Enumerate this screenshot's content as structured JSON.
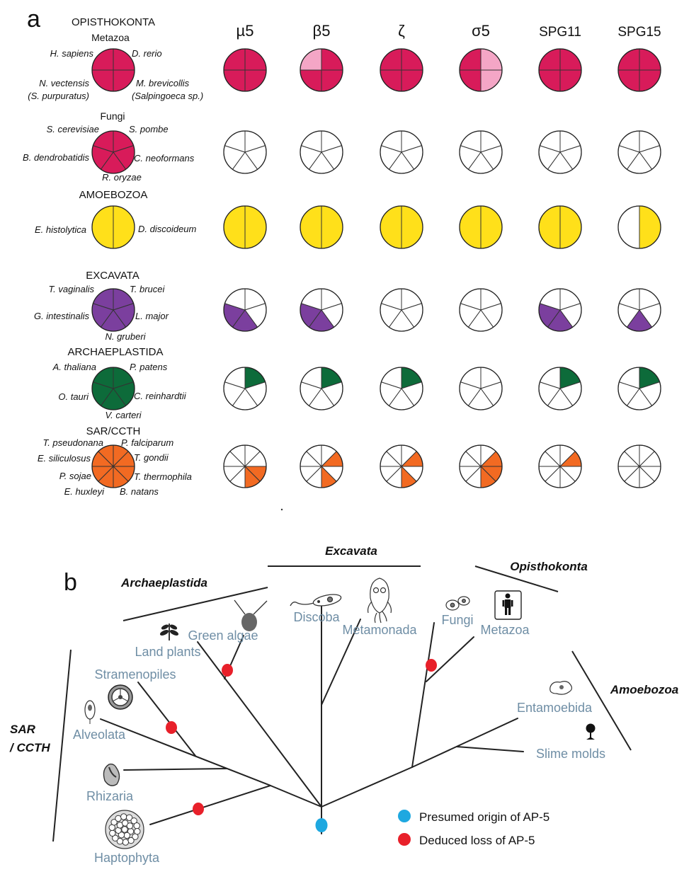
{
  "panel_a": {
    "letter": "a",
    "columns": [
      "µ5",
      "β5",
      "ζ",
      "σ5",
      "SPG11",
      "SPG15"
    ],
    "groups": [
      {
        "title": "OPISTHOKONTA",
        "subtitle": "Metazoa",
        "color": "#d81b5a",
        "light_color": "#f4a6c6",
        "sectors": 4,
        "species": [
          "H. sapiens",
          "D. rerio",
          "N. vectensis",
          "(S. purpuratus)",
          "M. brevicollis",
          "(Salpingoeca sp.)"
        ],
        "presence": [
          [
            1,
            1,
            1,
            1
          ],
          [
            1,
            1,
            1,
            0.5
          ],
          [
            1,
            1,
            1,
            1
          ],
          [
            0.5,
            0.5,
            1,
            1
          ],
          [
            1,
            1,
            1,
            1
          ],
          [
            1,
            1,
            1,
            1
          ]
        ]
      },
      {
        "title": "",
        "subtitle": "Fungi",
        "color": "#d81b5a",
        "sectors": 5,
        "species": [
          "S. cerevisiae",
          "S. pombe",
          "B. dendrobatidis",
          "C. neoformans",
          "R. oryzae"
        ],
        "presence": [
          [
            0,
            0,
            0,
            0,
            0
          ],
          [
            0,
            0,
            0,
            0,
            0
          ],
          [
            0,
            0,
            0,
            0,
            0
          ],
          [
            0,
            0,
            0,
            0,
            0
          ],
          [
            0,
            0,
            0,
            0,
            0
          ],
          [
            0,
            0,
            0,
            0,
            0
          ]
        ]
      },
      {
        "title": "AMOEBOZOA",
        "subtitle": "",
        "color": "#ffe01a",
        "sectors": 2,
        "species": [
          "E. histolytica",
          "D. discoideum"
        ],
        "presence": [
          [
            1,
            1
          ],
          [
            1,
            1
          ],
          [
            1,
            1
          ],
          [
            1,
            1
          ],
          [
            1,
            1
          ],
          [
            1,
            0
          ]
        ]
      },
      {
        "title": "EXCAVATA",
        "subtitle": "",
        "color": "#7b3f9e",
        "sectors": 5,
        "species": [
          "T. vaginalis",
          "T. brucei",
          "G. intestinalis",
          "L. major",
          "N. gruberi"
        ],
        "presence": [
          [
            0,
            0,
            1,
            1,
            0
          ],
          [
            0,
            0,
            1,
            1,
            0
          ],
          [
            0,
            0,
            0,
            0,
            0
          ],
          [
            0,
            0,
            0,
            0,
            0
          ],
          [
            0,
            0,
            1,
            1,
            0
          ],
          [
            0,
            0,
            1,
            0,
            0
          ]
        ]
      },
      {
        "title": "ARCHAEPLASTIDA",
        "subtitle": "",
        "color": "#0d6b3a",
        "sectors": 5,
        "species": [
          "A. thaliana",
          "P. patens",
          "O. tauri",
          "C. reinhardtii",
          "V. carteri"
        ],
        "presence": [
          [
            1,
            0,
            0,
            0,
            0
          ],
          [
            1,
            0,
            0,
            0,
            0
          ],
          [
            1,
            0,
            0,
            0,
            0
          ],
          [
            0,
            0,
            0,
            0,
            0
          ],
          [
            1,
            0,
            0,
            0,
            0
          ],
          [
            1,
            0,
            0,
            0,
            0
          ]
        ]
      },
      {
        "title": "SAR/CCTH",
        "subtitle": "",
        "color": "#f26a22",
        "sectors": 8,
        "species": [
          "T. pseudonana",
          "P. falciparum",
          "E. siliculosus",
          "T. gondii",
          "P. sojae",
          "T. thermophila",
          "E. huxleyi",
          "B. natans"
        ],
        "presence": [
          [
            0,
            0,
            1,
            1,
            0,
            0,
            0,
            0
          ],
          [
            0,
            1,
            0,
            1,
            0,
            0,
            0,
            0
          ],
          [
            0,
            1,
            0,
            1,
            0,
            0,
            0,
            0
          ],
          [
            0,
            1,
            1,
            1,
            0,
            0,
            0,
            0
          ],
          [
            0,
            1,
            0,
            0,
            0,
            0,
            0,
            0
          ],
          [
            0,
            0,
            0,
            0,
            0,
            0,
            0,
            0
          ]
        ]
      }
    ]
  },
  "panel_b": {
    "letter": "b",
    "supergroups": [
      "Excavata",
      "Opisthokonta",
      "Archaeplastida",
      "Amoebozoa",
      "SAR / CCTH"
    ],
    "clades": [
      "Discoba",
      "Metamonada",
      "Fungi",
      "Metazoa",
      "Green algae",
      "Land plants",
      "Stramenopiles",
      "Alveolata",
      "Rhizaria",
      "Haptophyta",
      "Entamoebida",
      "Slime molds"
    ],
    "legend": [
      {
        "label": "Presumed origin of AP-5",
        "color": "#1ea8e0"
      },
      {
        "label": "Deduced loss of AP-5",
        "color": "#e8202a"
      }
    ],
    "clade_color": "#6f8ea5"
  }
}
